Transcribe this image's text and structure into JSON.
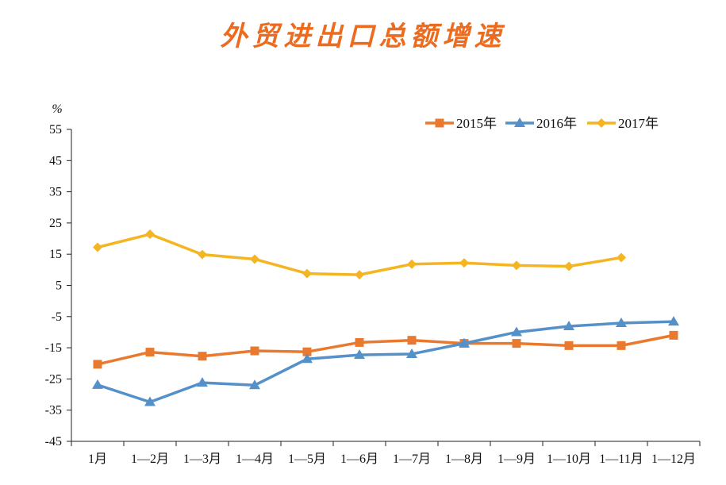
{
  "chart_data": {
    "type": "line",
    "title": "外贸进出口总额增速",
    "ylabel": "%",
    "xlabel": "",
    "ylim": [
      -45,
      55
    ],
    "yticks": [
      55,
      45,
      35,
      25,
      15,
      5,
      -5,
      -15,
      -25,
      -35,
      -45
    ],
    "categories": [
      "1月",
      "1—2月",
      "1—3月",
      "1—4月",
      "1—5月",
      "1—6月",
      "1—7月",
      "1—8月",
      "1—9月",
      "1—10月",
      "1—11月",
      "1—12月"
    ],
    "series": [
      {
        "name": "2015年",
        "color": "#e8792f",
        "marker": "square",
        "values": [
          -20.3,
          -16.4,
          -17.7,
          -16.0,
          -16.3,
          -13.3,
          -12.6,
          -13.6,
          -13.6,
          -14.3,
          -14.3,
          -11.0
        ]
      },
      {
        "name": "2016年",
        "color": "#5491c8",
        "marker": "triangle",
        "values": [
          -26.9,
          -32.4,
          -26.2,
          -27.0,
          -18.6,
          -17.3,
          -17.0,
          -13.6,
          -10.0,
          -8.1,
          -7.1,
          -6.6
        ]
      },
      {
        "name": "2017年",
        "color": "#f5b523",
        "marker": "diamond",
        "values": [
          17.2,
          21.4,
          14.9,
          13.4,
          8.8,
          8.4,
          11.8,
          12.2,
          11.4,
          11.1,
          13.9,
          null
        ]
      }
    ],
    "legend_position": "top-right",
    "grid": false
  }
}
